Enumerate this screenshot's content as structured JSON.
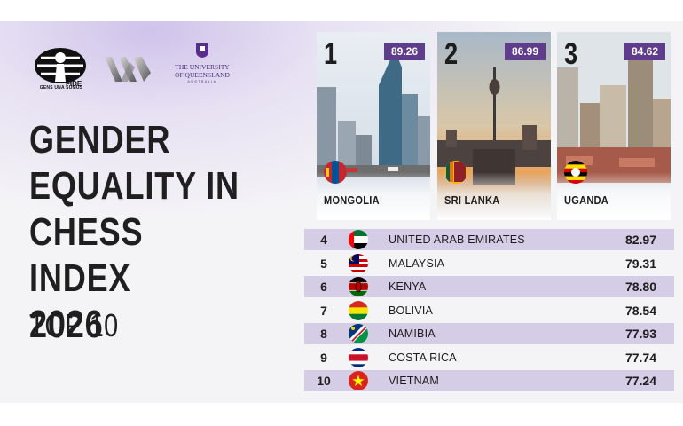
{
  "logos": {
    "fide_caption": "GENS UNA SUMUS",
    "uq_line1": "THE UNIVERSITY",
    "uq_line2": "OF QUEENSLAND",
    "uq_line3": "AUSTRALIA"
  },
  "title": {
    "line1": "GENDER",
    "line2": "EQUALITY IN",
    "line3": "CHESS INDEX",
    "line4": "2026",
    "subtitle": "TOP 10"
  },
  "podium": [
    {
      "rank": "1",
      "score": "89.26",
      "country": "MONGOLIA",
      "flag_icon": "mongolia-flag-icon"
    },
    {
      "rank": "2",
      "score": "86.99",
      "country": "SRI LANKA",
      "flag_icon": "sri-lanka-flag-icon"
    },
    {
      "rank": "3",
      "score": "84.62",
      "country": "UGANDA",
      "flag_icon": "uganda-flag-icon"
    }
  ],
  "ranking": [
    {
      "rank": "4",
      "country": "UNITED ARAB EMIRATES",
      "score": "82.97",
      "flag_icon": "uae-flag-icon"
    },
    {
      "rank": "5",
      "country": "MALAYSIA",
      "score": "79.31",
      "flag_icon": "malaysia-flag-icon"
    },
    {
      "rank": "6",
      "country": "KENYA",
      "score": "78.80",
      "flag_icon": "kenya-flag-icon"
    },
    {
      "rank": "7",
      "country": "BOLIVIA",
      "score": "78.54",
      "flag_icon": "bolivia-flag-icon"
    },
    {
      "rank": "8",
      "country": "NAMIBIA",
      "score": "77.93",
      "flag_icon": "namibia-flag-icon"
    },
    {
      "rank": "9",
      "country": "COSTA RICA",
      "score": "77.74",
      "flag_icon": "costa-rica-flag-icon"
    },
    {
      "rank": "10",
      "country": "VIETNAM",
      "score": "77.24",
      "flag_icon": "vietnam-flag-icon"
    }
  ],
  "colors": {
    "accent_purple": "#5f3d8c",
    "row_shade": "#d5cce5",
    "text_dark": "#1d1d1d"
  }
}
